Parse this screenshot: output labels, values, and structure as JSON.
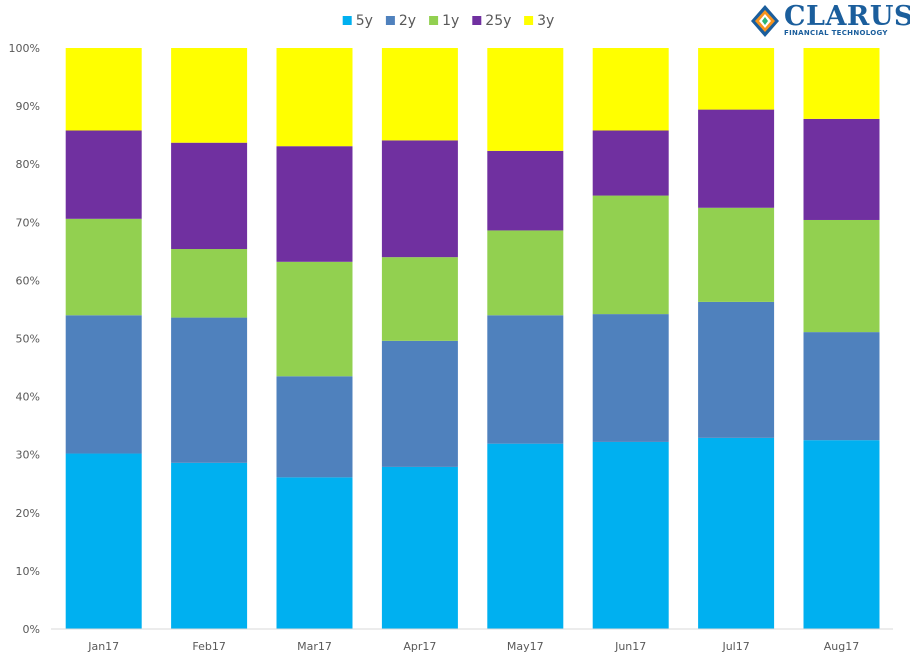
{
  "logo": {
    "name": "CLARUS",
    "subtitle": "FINANCIAL TECHNOLOGY"
  },
  "chart_data": {
    "type": "bar",
    "stacked": true,
    "percent_stacked": true,
    "categories": [
      "Jan17",
      "Feb17",
      "Mar17",
      "Apr17",
      "May17",
      "Jun17",
      "Jul17",
      "Aug17"
    ],
    "series": [
      {
        "name": "5y",
        "color": "#00b0f0",
        "values": [
          30.2,
          28.6,
          26.1,
          27.9,
          31.9,
          32.2,
          32.9,
          32.5
        ]
      },
      {
        "name": "2y",
        "color": "#4f81bd",
        "values": [
          23.8,
          25.0,
          17.4,
          21.7,
          22.1,
          22.0,
          23.4,
          18.6
        ]
      },
      {
        "name": "1y",
        "color": "#92d050",
        "values": [
          16.6,
          11.8,
          19.7,
          14.4,
          14.6,
          20.4,
          16.2,
          19.3
        ]
      },
      {
        "name": "25y",
        "color": "#7030a0",
        "values": [
          15.2,
          18.3,
          19.9,
          20.1,
          13.7,
          11.2,
          16.9,
          17.4
        ]
      },
      {
        "name": "3y",
        "color": "#ffff00",
        "values": [
          14.2,
          16.3,
          16.9,
          15.9,
          17.7,
          14.2,
          10.6,
          12.2
        ]
      }
    ],
    "y_ticks": [
      "0%",
      "10%",
      "20%",
      "30%",
      "40%",
      "50%",
      "60%",
      "70%",
      "80%",
      "90%",
      "100%"
    ],
    "ylim": [
      0,
      100
    ],
    "legend_position": "top",
    "grid": false
  }
}
